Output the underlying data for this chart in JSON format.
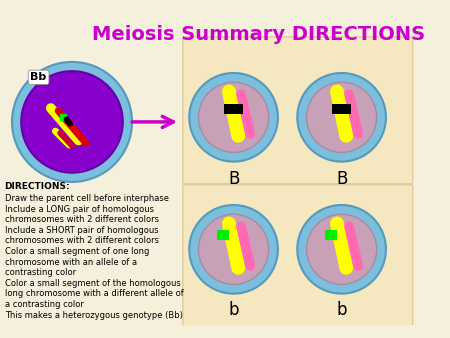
{
  "title": "Meiosis Summary DIRECTIONS",
  "title_color": "#cc00cc",
  "title_fontsize": 14,
  "background_color": "#f5f0dc",
  "directions_title": "DIRECTIONS:",
  "directions_lines": [
    "Draw the parent cell before interphase",
    "Include a LONG pair of homologous",
    "chromosomes with 2 different colors",
    "Include a SHORT pair of homologous",
    "chromosomes with 2 different colors",
    "Color a small segment of one long",
    "chromosome with an allele of a",
    "contrasting color",
    "Color a small segment of the homologous",
    "long chromosome with a different allele of",
    "a contrasting color",
    "This makes a heterozygous genotype (Bb)"
  ],
  "arrow_color": "#cc00cc",
  "cell_outer_color": "#7bbfde",
  "cell_inner_color": "#d4a8c7",
  "cell_nucleus_color": "#b08090",
  "parent_cell_bg": "#8800cc",
  "label_B": "B",
  "label_b": "b",
  "bb_label": "Bb"
}
